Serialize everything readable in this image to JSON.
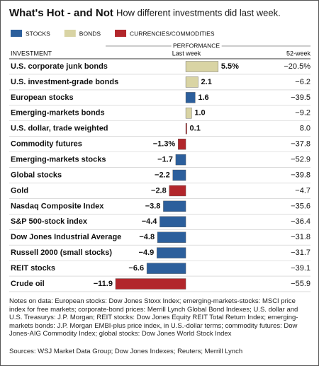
{
  "chart_data": {
    "type": "bar",
    "title": "What's Hot - and Not",
    "subtitle": "How different investments did last week.",
    "legend": [
      {
        "name": "STOCKS",
        "color": "#2c5f9c"
      },
      {
        "name": "BONDS",
        "color": "#d9d4a4"
      },
      {
        "name": "CURRENCIES/COMMODITIES",
        "color": "#b2262b"
      }
    ],
    "header": {
      "investment": "INVESTMENT",
      "performance": "PERFORMANCE",
      "last_week": "Last week",
      "week52": "52-week"
    },
    "categories": [
      "U.S. corporate junk bonds",
      "U.S. investment-grade bonds",
      "European stocks",
      "Emerging-markets bonds",
      "U.S. dollar, trade weighted",
      "Commodity futures",
      "Emerging-markets stocks",
      "Global stocks",
      "Gold",
      "Nasdaq Composite Index",
      "S&P 500-stock index",
      "Dow Jones Industrial Average",
      "Russell 2000 (small stocks)",
      "REIT stocks",
      "Crude oil"
    ],
    "values": [
      5.5,
      2.1,
      1.6,
      1.0,
      0.1,
      -1.3,
      -1.7,
      -2.2,
      -2.8,
      -3.8,
      -4.4,
      -4.8,
      -4.9,
      -6.6,
      -11.9
    ],
    "value_labels": [
      "5.5%",
      "2.1",
      "1.6",
      "1.0",
      "0.1",
      "−1.3%",
      "−1.7",
      "−2.2",
      "−2.8",
      "−3.8",
      "−4.4",
      "−4.8",
      "−4.9",
      "−6.6",
      "−11.9"
    ],
    "groups": [
      1,
      1,
      0,
      1,
      2,
      2,
      0,
      0,
      2,
      0,
      0,
      0,
      0,
      0,
      2
    ],
    "week52": [
      "−20.5%",
      "−6.2",
      "−39.5",
      "−9.2",
      "8.0",
      "−37.8",
      "−52.9",
      "−39.8",
      "−4.7",
      "−35.6",
      "−36.4",
      "−31.8",
      "−31.7",
      "−39.1",
      "−55.9"
    ],
    "xlim": [
      -12.5,
      6
    ],
    "notes": "Notes on data: European stocks: Dow Jones Stoxx Index; emerging-markets-stocks: MSCI price index for free markets; corporate-bond prices: Merrill Lynch Global Bond Indexes; U.S. dollar and U.S. Treasurys: J.P. Morgan; REIT stocks: Dow Jones Equity REIT Total Return Index; emerging-markets bonds: J.P. Morgan EMBI-plus price index, in U.S.-dollar terms; commodity futures: Dow Jones-AIG Commodity Index; global stocks: Dow Jones World Stock Index",
    "sources": "Sources: WSJ Market Data Group; Dow Jones Indexes; Reuters; Merrill Lynch"
  }
}
